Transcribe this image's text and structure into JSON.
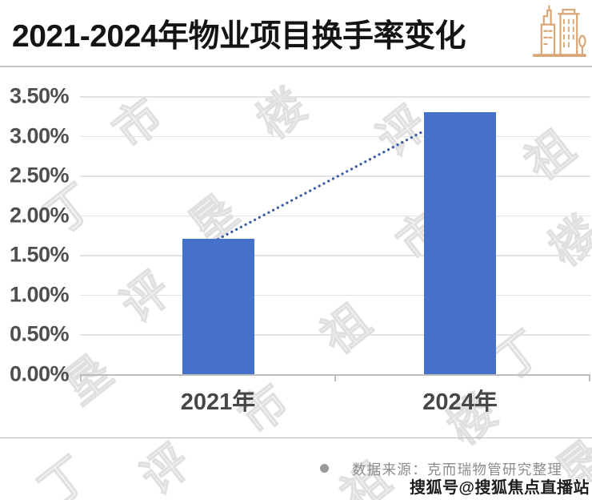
{
  "header": {
    "title": "2021-2024年物业项目换手率变化",
    "icon": "city-buildings-icon"
  },
  "chart_data": {
    "type": "bar",
    "title": "2021-2024年物业项目换手率变化",
    "categories": [
      "2021年",
      "2024年"
    ],
    "values": [
      1.7,
      3.3
    ],
    "value_format": "percent",
    "xlabel": "",
    "ylabel": "",
    "ylim": [
      0,
      3.5
    ],
    "ytick_step": 0.5,
    "ytick_labels": [
      "3.50%",
      "3.00%",
      "2.50%",
      "2.00%",
      "1.50%",
      "1.00%",
      "0.50%",
      "0.00%"
    ],
    "grid": true,
    "legend": "none",
    "bar_color": "#4571CB",
    "trendline": {
      "style": "dotted-connector",
      "color": "#3A5BA0",
      "from_value": 1.7,
      "to_value": 3.3
    }
  },
  "footer": {
    "source_text": "数据来源：克而瑞物管研究整理"
  },
  "watermarks": {
    "sohu_badge": "搜狐号@搜狐焦点直播站",
    "background_glyphs": [
      "市",
      "楼",
      "评",
      "祖",
      "丁",
      "垦"
    ]
  },
  "colors": {
    "bar": "#4571CB",
    "trendline": "#3A5BA0",
    "title_text": "#141414",
    "axis_text": "#4F4F4F",
    "grid_line": "#E3E3E3",
    "axis_line": "#BDBDBD",
    "source_text": "#8D8D8D",
    "icon_accent": "#D9A878",
    "background": "#FFFFFF"
  }
}
